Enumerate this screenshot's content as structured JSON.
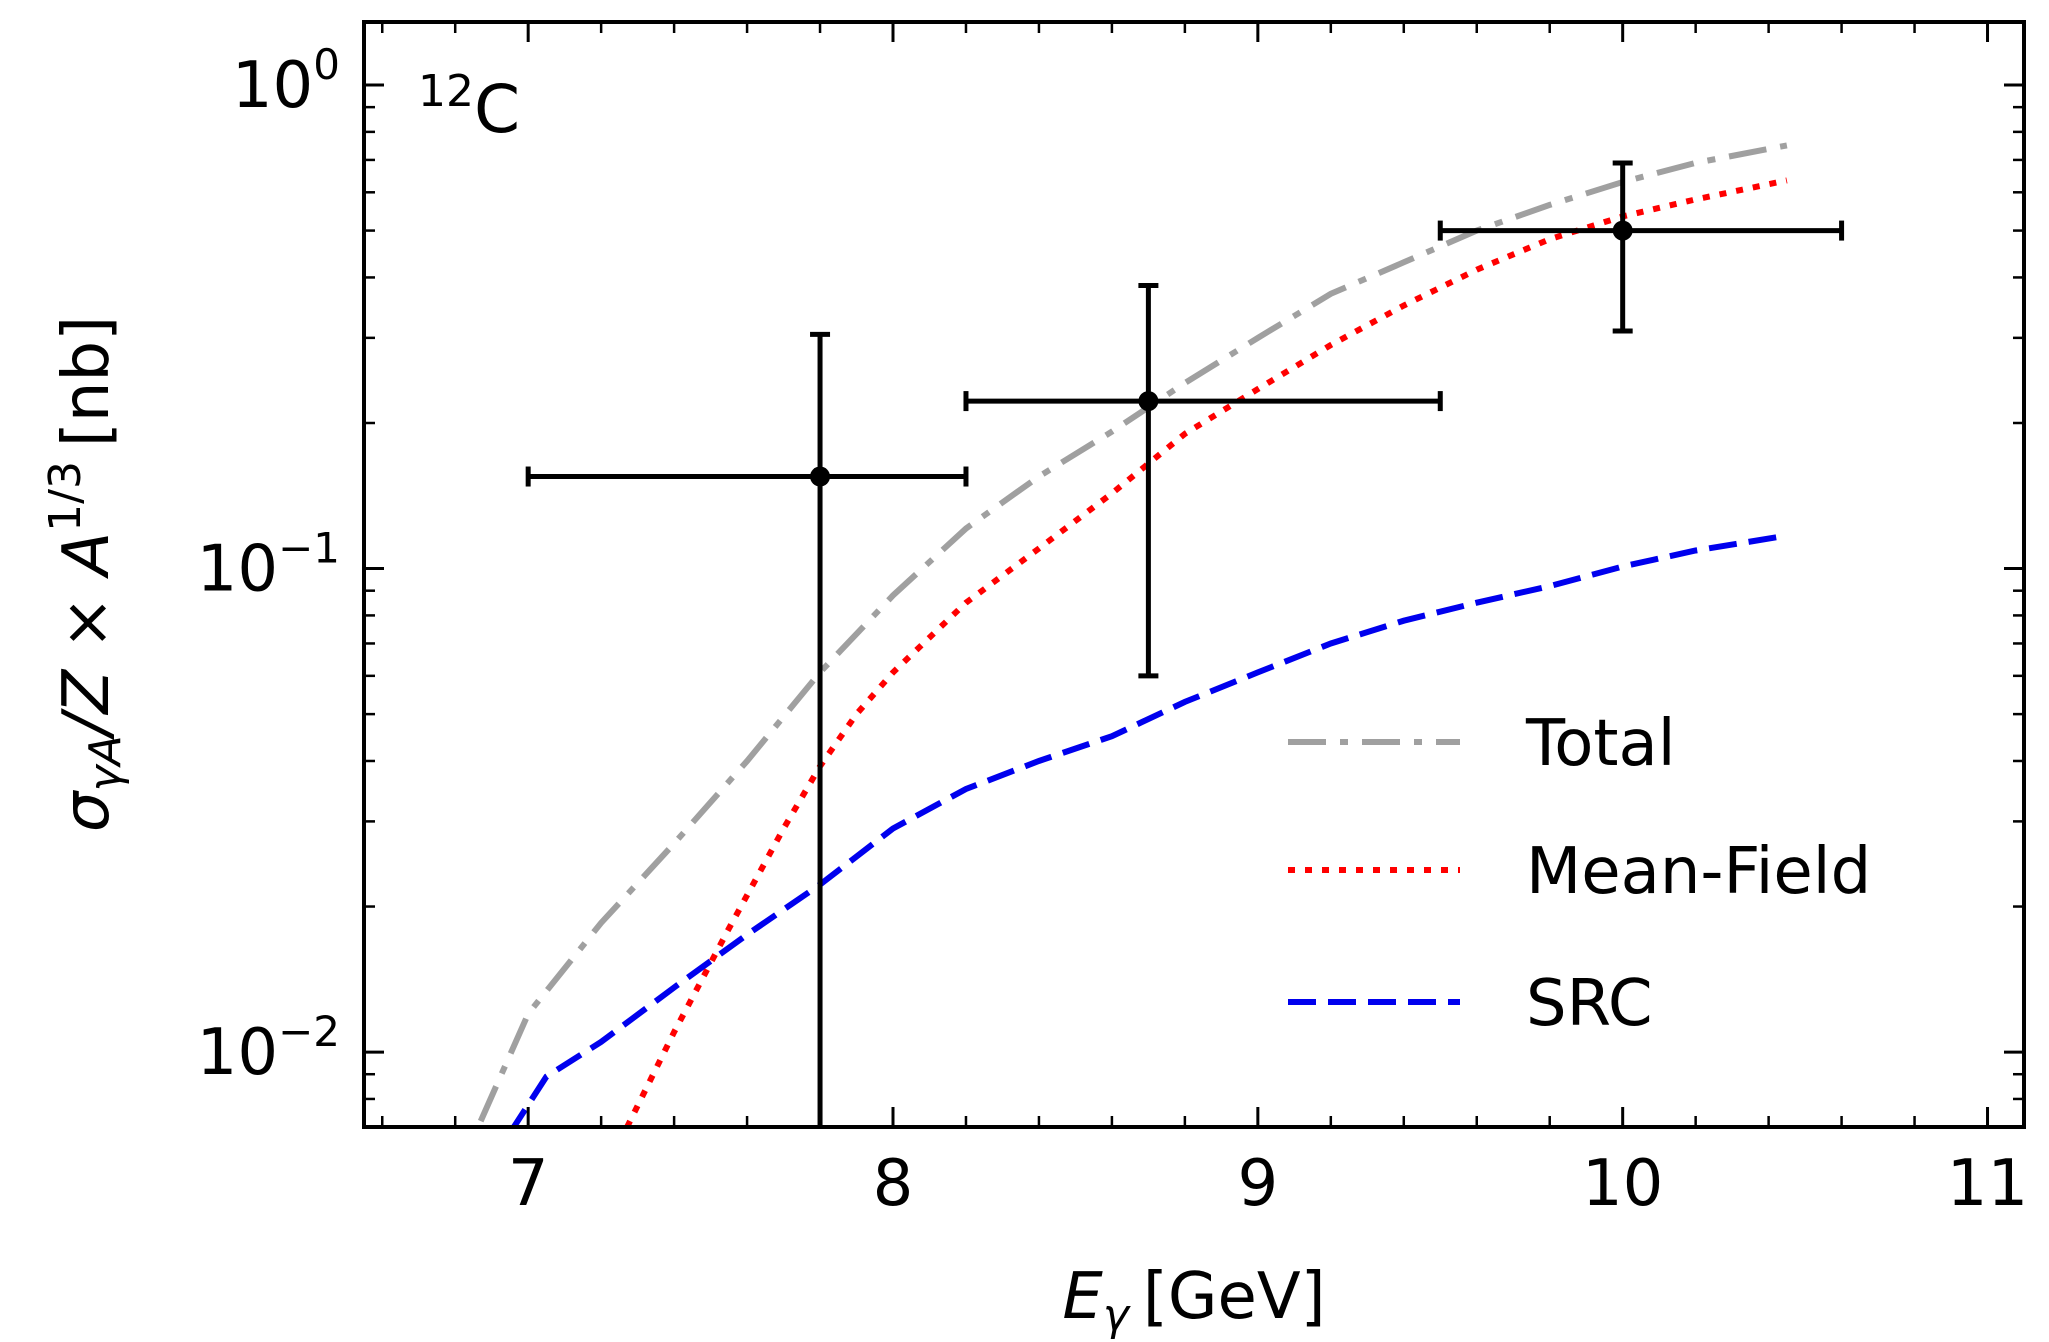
{
  "chart_data": {
    "type": "line",
    "title": "",
    "annotation": {
      "mass_number": "12",
      "element": "C"
    },
    "xlabel": {
      "main": "E",
      "sub": "γ",
      "unit": "[GeV]"
    },
    "ylabel": {
      "main": "σ",
      "sub": "γA",
      "rest": "/Z × A",
      "sup": "1/3",
      "unit": "[nb]"
    },
    "xlim": [
      6.55,
      11.1
    ],
    "ylim": [
      0.007,
      1.35
    ],
    "yscale": "log",
    "grid": false,
    "x_ticks": [
      7,
      8,
      9,
      10,
      11
    ],
    "x_tick_labels": [
      "7",
      "8",
      "9",
      "10",
      "11"
    ],
    "y_ticks": [
      {
        "value": 0.01,
        "base": "10",
        "exp": "−2"
      },
      {
        "value": 0.1,
        "base": "10",
        "exp": "−1"
      },
      {
        "value": 1,
        "base": "10",
        "exp": "0"
      }
    ],
    "legend_position": "lower-right",
    "series": [
      {
        "name": "Total",
        "color": "#a0a0a0",
        "style": "dash-dot",
        "x": [
          6.87,
          7.0,
          7.2,
          7.4,
          7.6,
          7.8,
          8.0,
          8.2,
          8.4,
          8.6,
          8.8,
          9.0,
          9.2,
          9.4,
          9.6,
          9.8,
          10.0,
          10.2,
          10.45
        ],
        "y": [
          0.0072,
          0.012,
          0.0185,
          0.027,
          0.04,
          0.061,
          0.088,
          0.121,
          0.155,
          0.192,
          0.242,
          0.3,
          0.37,
          0.43,
          0.5,
          0.565,
          0.63,
          0.69,
          0.75
        ]
      },
      {
        "name": "Mean-Field",
        "color": "#ff0000",
        "style": "dotted",
        "x": [
          7.25,
          7.4,
          7.55,
          7.7,
          7.8,
          7.9,
          8.0,
          8.2,
          8.4,
          8.6,
          8.8,
          9.0,
          9.2,
          9.4,
          9.6,
          9.8,
          10.0,
          10.2,
          10.45
        ],
        "y": [
          0.0065,
          0.011,
          0.018,
          0.029,
          0.039,
          0.05,
          0.061,
          0.085,
          0.11,
          0.143,
          0.19,
          0.235,
          0.29,
          0.35,
          0.415,
          0.48,
          0.535,
          0.58,
          0.635
        ]
      },
      {
        "name": "SRC",
        "color": "#0000ee",
        "style": "dashed",
        "x": [
          6.95,
          7.05,
          7.2,
          7.4,
          7.6,
          7.8,
          8.0,
          8.2,
          8.4,
          8.6,
          8.8,
          9.0,
          9.2,
          9.4,
          9.6,
          9.8,
          10.0,
          10.2,
          10.45
        ],
        "y": [
          0.0068,
          0.0089,
          0.0105,
          0.0136,
          0.0175,
          0.0222,
          0.029,
          0.035,
          0.04,
          0.045,
          0.053,
          0.061,
          0.07,
          0.078,
          0.085,
          0.092,
          0.101,
          0.109,
          0.117
        ]
      }
    ],
    "data_points": [
      {
        "x": 7.8,
        "y": 0.155,
        "x_low": 7.0,
        "x_high": 8.2,
        "y_low": 0.0,
        "y_high": 0.305
      },
      {
        "x": 8.7,
        "y": 0.222,
        "x_low": 8.2,
        "x_high": 9.5,
        "y_low": 0.06,
        "y_high": 0.385
      },
      {
        "x": 10.0,
        "y": 0.5,
        "x_low": 9.5,
        "x_high": 10.6,
        "y_low": 0.31,
        "y_high": 0.69
      }
    ]
  }
}
